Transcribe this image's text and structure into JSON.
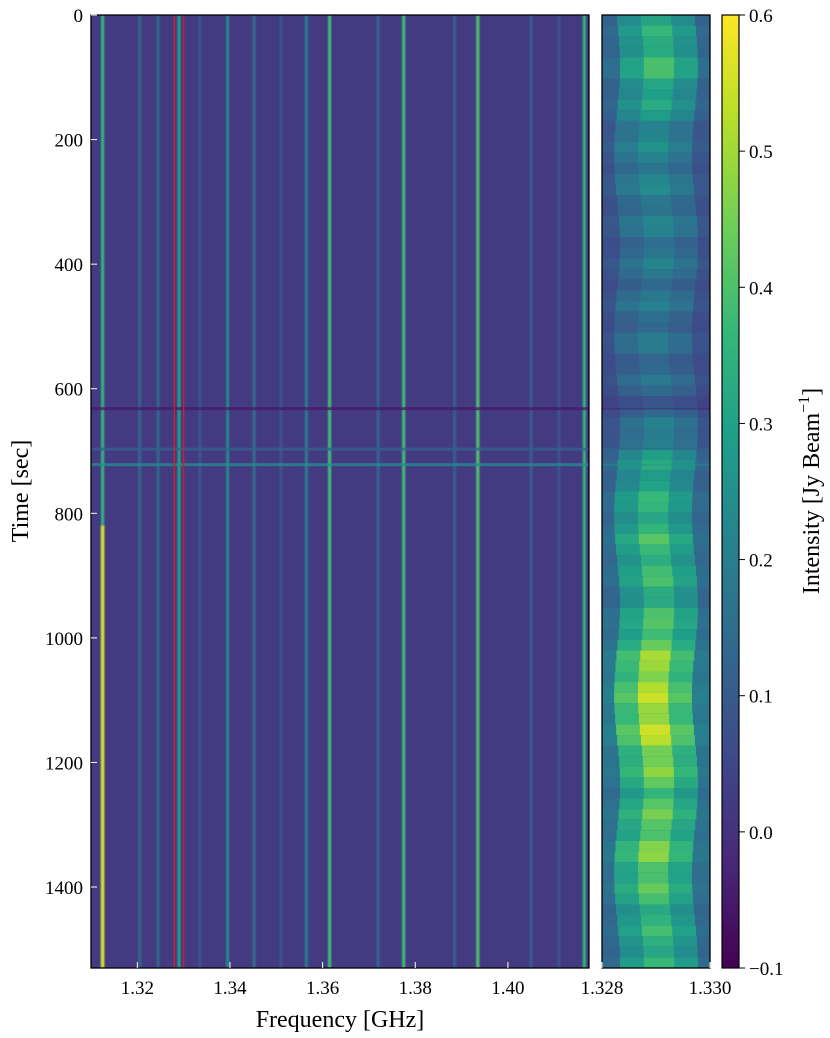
{
  "chart_data": [
    {
      "type": "heatmap",
      "panel": "main",
      "xlabel": "Frequency [GHz]",
      "ylabel": "Time [sec]",
      "xlim": [
        1.31,
        1.4175
      ],
      "ylim": [
        1530,
        0
      ],
      "x_ticks": [
        1.32,
        1.34,
        1.36,
        1.38,
        1.4
      ],
      "x_tick_labels": [
        "1.32",
        "1.34",
        "1.36",
        "1.38",
        "1.40"
      ],
      "y_ticks": [
        0,
        200,
        400,
        600,
        800,
        1000,
        1200,
        1400
      ],
      "y_tick_labels": [
        "0",
        "200",
        "400",
        "600",
        "800",
        "1000",
        "1200",
        "1400"
      ],
      "background_intensity": 0.02,
      "lines": [
        {
          "freq": 1.3125,
          "intensity": 0.35,
          "strong_after_sec": 820,
          "strong_intensity": 0.55
        },
        {
          "freq": 1.3205,
          "intensity": 0.12
        },
        {
          "freq": 1.3245,
          "intensity": 0.12
        },
        {
          "freq": 1.329,
          "intensity": 0.28
        },
        {
          "freq": 1.3335,
          "intensity": 0.08
        },
        {
          "freq": 1.3395,
          "intensity": 0.22
        },
        {
          "freq": 1.3452,
          "intensity": 0.14
        },
        {
          "freq": 1.351,
          "intensity": 0.08
        },
        {
          "freq": 1.3565,
          "intensity": 0.18
        },
        {
          "freq": 1.3615,
          "intensity": 0.38
        },
        {
          "freq": 1.372,
          "intensity": 0.12
        },
        {
          "freq": 1.3775,
          "intensity": 0.38
        },
        {
          "freq": 1.3885,
          "intensity": 0.1
        },
        {
          "freq": 1.3935,
          "intensity": 0.4
        },
        {
          "freq": 1.405,
          "intensity": 0.1
        },
        {
          "freq": 1.411,
          "intensity": 0.08
        },
        {
          "freq": 1.4165,
          "intensity": 0.35
        }
      ],
      "rfi_bands_sec": [
        {
          "time": 632,
          "intensity": -0.05
        },
        {
          "time": 722,
          "intensity": 0.25
        },
        {
          "time": 697,
          "intensity": 0.12
        }
      ],
      "highlight_band_ghz": [
        1.328,
        1.33
      ],
      "highlight_color": "#e31a1c"
    },
    {
      "type": "heatmap",
      "panel": "zoom",
      "xlim": [
        1.328,
        1.33
      ],
      "x_ticks": [
        1.328,
        1.33
      ],
      "x_tick_labels": [
        "1.328",
        "1.330"
      ],
      "ylim": [
        1530,
        0
      ],
      "line_center_ghz": 1.329,
      "line_width_ghz": 0.0005,
      "peak_intensity_profile": [
        {
          "time": 0,
          "intensity": 0.3
        },
        {
          "time": 80,
          "intensity": 0.38
        },
        {
          "time": 200,
          "intensity": 0.22
        },
        {
          "time": 400,
          "intensity": 0.18
        },
        {
          "time": 560,
          "intensity": 0.16
        },
        {
          "time": 630,
          "intensity": 0.12
        },
        {
          "time": 720,
          "intensity": 0.3
        },
        {
          "time": 850,
          "intensity": 0.38
        },
        {
          "time": 950,
          "intensity": 0.35
        },
        {
          "time": 1050,
          "intensity": 0.5
        },
        {
          "time": 1150,
          "intensity": 0.52
        },
        {
          "time": 1250,
          "intensity": 0.4
        },
        {
          "time": 1350,
          "intensity": 0.45
        },
        {
          "time": 1450,
          "intensity": 0.35
        },
        {
          "time": 1530,
          "intensity": 0.35
        }
      ]
    },
    {
      "type": "colorbar",
      "label": "Intensity [Jy Beam",
      "label_sup": "−1",
      "label_close": "]",
      "colormap": "viridis",
      "range": [
        -0.1,
        0.6
      ],
      "ticks": [
        -0.1,
        0.0,
        0.1,
        0.2,
        0.3,
        0.4,
        0.5,
        0.6
      ],
      "tick_labels": [
        "−0.1",
        "0.0",
        "0.1",
        "0.2",
        "0.3",
        "0.4",
        "0.5",
        "0.6"
      ],
      "viridis_stops": [
        "#440154",
        "#482878",
        "#3e4989",
        "#31688e",
        "#26828e",
        "#1f9e89",
        "#35b779",
        "#6ece58",
        "#b5de2b",
        "#fde725"
      ]
    }
  ]
}
